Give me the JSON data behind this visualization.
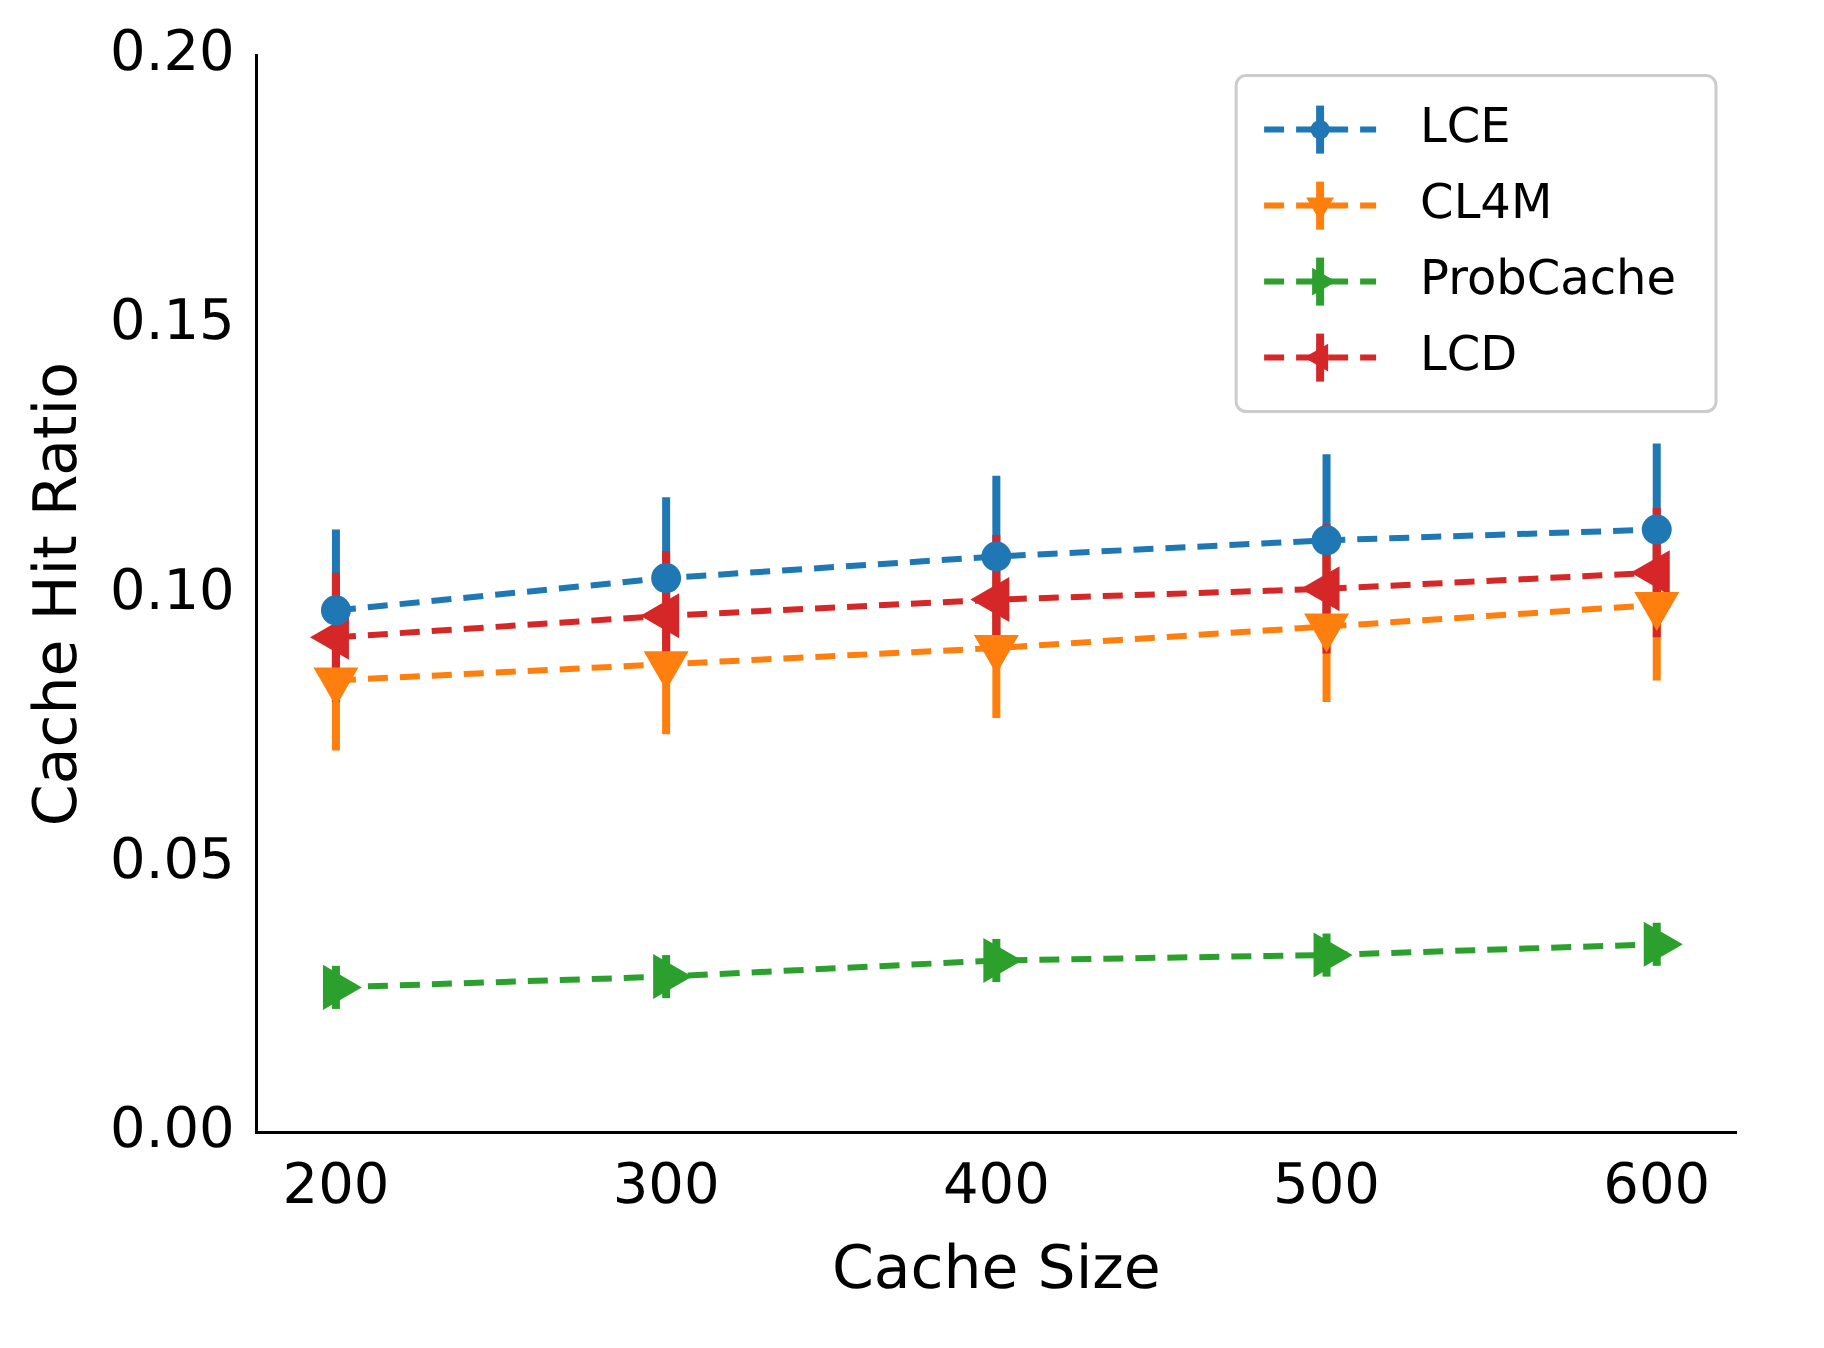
{
  "chart_data": {
    "type": "line",
    "xlabel": "Cache Size",
    "ylabel": "Cache Hit Ratio",
    "x": [
      200,
      300,
      400,
      500,
      600
    ],
    "xlim": [
      176,
      624
    ],
    "xticks": [
      200,
      300,
      400,
      500,
      600
    ],
    "ylim": [
      0,
      0.2
    ],
    "yticks": [
      {
        "value": 0,
        "label": "0.00"
      },
      {
        "value": 0.05,
        "label": "0.05"
      },
      {
        "value": 0.1,
        "label": "0.10"
      },
      {
        "value": 0.15,
        "label": "0.15"
      },
      {
        "value": 0.2,
        "label": "0.20"
      }
    ],
    "grid": false,
    "legend": "top right",
    "line_style": "dashed",
    "series": [
      {
        "name": "LCE",
        "color": "#1f77b4",
        "marker": "circle",
        "values": [
          0.097,
          0.103,
          0.107,
          0.11,
          0.112
        ],
        "errors": [
          0.015,
          0.015,
          0.015,
          0.016,
          0.016
        ]
      },
      {
        "name": "CL4M",
        "color": "#ff7f0e",
        "marker": "triangle",
        "values": [
          0.084,
          0.087,
          0.09,
          0.094,
          0.098
        ],
        "errors": [
          0.013,
          0.013,
          0.013,
          0.014,
          0.014
        ]
      },
      {
        "name": "ProbCache",
        "color": "#2ca02c",
        "marker": "triangle",
        "values": [
          0.027,
          0.029,
          0.032,
          0.033,
          0.035
        ],
        "errors": [
          0.004,
          0.004,
          0.004,
          0.004,
          0.004
        ]
      },
      {
        "name": "LCD",
        "color": "#d62728",
        "marker": "triangle",
        "values": [
          0.092,
          0.096,
          0.099,
          0.101,
          0.104
        ],
        "errors": [
          0.012,
          0.012,
          0.012,
          0.012,
          0.012
        ]
      }
    ]
  }
}
